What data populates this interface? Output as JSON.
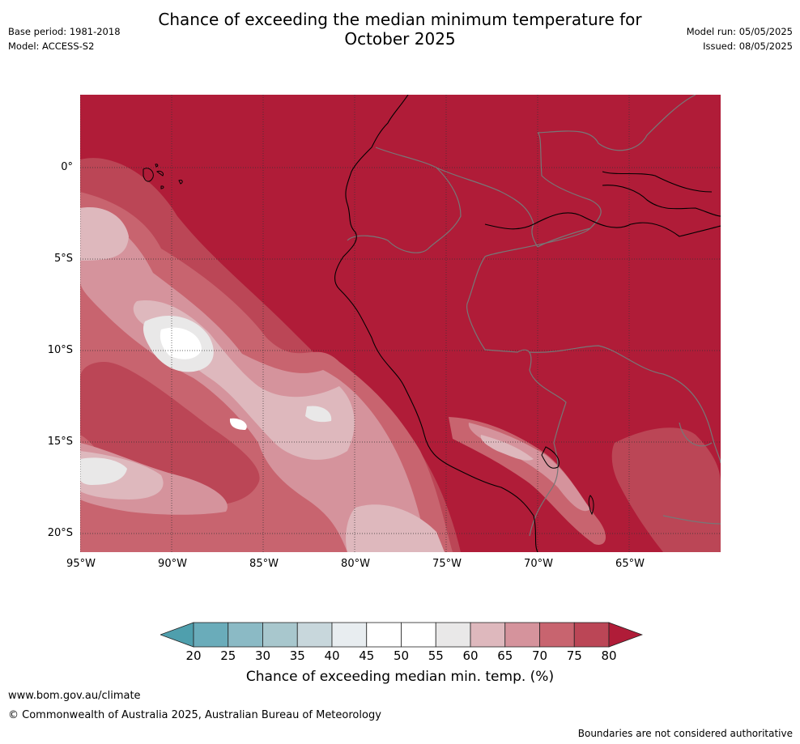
{
  "title_line1": "Chance of exceeding the median minimum temperature for",
  "title_line2": "October 2025",
  "base_period": "Base period: 1981-2018",
  "model": "Model: ACCESS-S2",
  "model_run": "Model run: 05/05/2025",
  "issued": "Issued: 08/05/2025",
  "lat_labels": [
    "0°",
    "5°S",
    "10°S",
    "15°S",
    "20°S"
  ],
  "lon_labels": [
    "95°W",
    "90°W",
    "85°W",
    "80°W",
    "75°W",
    "70°W",
    "65°W"
  ],
  "colorbar": {
    "ticks": [
      "20",
      "25",
      "30",
      "35",
      "40",
      "45",
      "50",
      "55",
      "60",
      "65",
      "70",
      "75",
      "80"
    ],
    "colors": [
      "#4f9fad",
      "#6aacba",
      "#8bbac5",
      "#a8c7cd",
      "#c8d7dc",
      "#e8edf0",
      "#ffffff",
      "#ffffff",
      "#e9e8e8",
      "#deb8bd",
      "#d5939c",
      "#c8646f",
      "#bb4656",
      "#b01c38"
    ],
    "label": "Chance of exceeding median min. temp. (%)"
  },
  "url": "www.bom.gov.au/climate",
  "copyright": "© Commonwealth of Australia 2025, Australian Bureau of Meteorology",
  "disclaimer": "Boundaries are not considered authoritative"
}
